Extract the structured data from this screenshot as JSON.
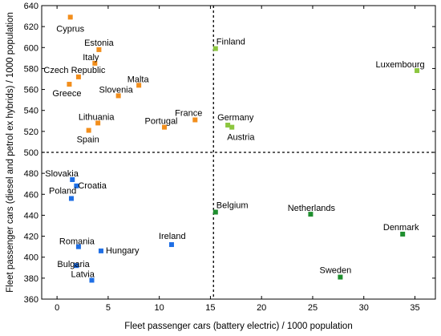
{
  "chart_data": {
    "type": "scatter",
    "xlabel": "Fleet passenger cars (battery electric) / 1000 population",
    "ylabel": "Fleet passenger cars (diesel and petrol ex hybrids) / 1000 population",
    "xlim": [
      -1.5,
      37
    ],
    "ylim": [
      360,
      640
    ],
    "x_ticks": [
      0,
      5,
      10,
      15,
      20,
      25,
      30,
      35
    ],
    "y_ticks": [
      360,
      380,
      400,
      420,
      440,
      460,
      480,
      500,
      520,
      540,
      560,
      580,
      600,
      620,
      640
    ],
    "reference_lines": {
      "x": 15.3,
      "y": 500
    },
    "grid": false,
    "legend": "none",
    "colors": {
      "orange": "#f28e1c",
      "lightgreen": "#8cc63f",
      "blue": "#1f6fe5",
      "darkgreen": "#1f8f2f"
    },
    "points": [
      {
        "label": "Cyprus",
        "x": 1.3,
        "y": 629,
        "color": "orange"
      },
      {
        "label": "Estonia",
        "x": 4.1,
        "y": 598,
        "color": "orange"
      },
      {
        "label": "Italy",
        "x": 3.7,
        "y": 585,
        "color": "orange"
      },
      {
        "label": "Czech Republic",
        "x": 2.1,
        "y": 572,
        "color": "orange"
      },
      {
        "label": "Greece",
        "x": 1.2,
        "y": 565,
        "color": "orange"
      },
      {
        "label": "Malta",
        "x": 8.0,
        "y": 564,
        "color": "orange"
      },
      {
        "label": "Slovenia",
        "x": 6.0,
        "y": 554,
        "color": "orange"
      },
      {
        "label": "France",
        "x": 13.5,
        "y": 531,
        "color": "orange"
      },
      {
        "label": "Lithuania",
        "x": 4.0,
        "y": 528,
        "color": "orange"
      },
      {
        "label": "Portugal",
        "x": 10.5,
        "y": 524,
        "color": "orange"
      },
      {
        "label": "Spain",
        "x": 3.1,
        "y": 521,
        "color": "orange"
      },
      {
        "label": "Finland",
        "x": 15.5,
        "y": 599,
        "color": "lightgreen"
      },
      {
        "label": "Luxembourg",
        "x": 35.2,
        "y": 578,
        "color": "lightgreen"
      },
      {
        "label": "Germany",
        "x": 16.7,
        "y": 526,
        "color": "lightgreen"
      },
      {
        "label": "Austria",
        "x": 17.1,
        "y": 524,
        "color": "lightgreen"
      },
      {
        "label": "Slovakia",
        "x": 1.5,
        "y": 474,
        "color": "blue"
      },
      {
        "label": "Croatia",
        "x": 1.9,
        "y": 468,
        "color": "blue"
      },
      {
        "label": "Poland",
        "x": 1.4,
        "y": 456,
        "color": "blue"
      },
      {
        "label": "Romania",
        "x": 2.1,
        "y": 410,
        "color": "blue"
      },
      {
        "label": "Hungary",
        "x": 4.3,
        "y": 406,
        "color": "blue"
      },
      {
        "label": "Ireland",
        "x": 11.2,
        "y": 412,
        "color": "blue"
      },
      {
        "label": "Bulgaria",
        "x": 1.9,
        "y": 392,
        "color": "blue"
      },
      {
        "label": "Latvia",
        "x": 3.4,
        "y": 378,
        "color": "blue"
      },
      {
        "label": "Belgium",
        "x": 15.5,
        "y": 443,
        "color": "darkgreen"
      },
      {
        "label": "Netherlands",
        "x": 24.8,
        "y": 441,
        "color": "darkgreen"
      },
      {
        "label": "Denmark",
        "x": 33.8,
        "y": 422,
        "color": "darkgreen"
      },
      {
        "label": "Sweden",
        "x": 27.7,
        "y": 381,
        "color": "darkgreen"
      }
    ]
  }
}
